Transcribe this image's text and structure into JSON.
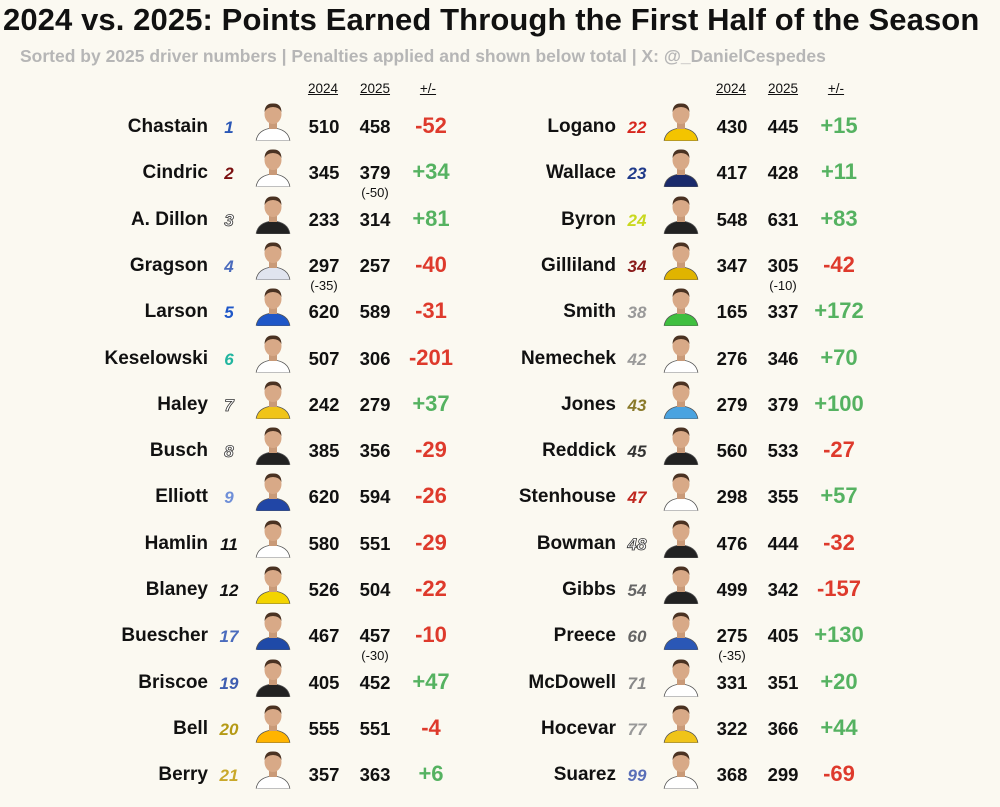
{
  "title": "2024 vs. 2025: Points Earned Through the First Half of the Season",
  "subtitle": "Sorted by 2025 driver numbers | Penalties applied and shown below total | X: @_DanielCespedes",
  "headers": {
    "y2024": "2024",
    "y2025": "2025",
    "diff": "+/-"
  },
  "colors": {
    "positive": "#55b261",
    "negative": "#de3a2c",
    "background": "#fbf9f1",
    "text": "#111111",
    "subtitle": "#b6b6b6"
  },
  "chart_data": {
    "type": "table",
    "columns": [
      "2024",
      "2025",
      "+/-"
    ],
    "rows": [
      {
        "driver": "Chastain",
        "car": "1",
        "car_color": "#2a57b6",
        "suit": "#ffffff",
        "p2024": "510",
        "p2025": "458",
        "diff": "-52",
        "diff_value": -52
      },
      {
        "driver": "Cindric",
        "car": "2",
        "car_color": "#7a1010",
        "suit": "#ffffff",
        "p2024": "345",
        "p2025": "379",
        "pen2025": "(-50)",
        "diff": "+34",
        "diff_value": 34
      },
      {
        "driver": "A. Dillon",
        "car": "3",
        "car_color": "#ffffff",
        "suit": "#222222",
        "p2024": "233",
        "p2025": "314",
        "diff": "+81",
        "diff_value": 81
      },
      {
        "driver": "Gragson",
        "car": "4",
        "car_color": "#4a6bbd",
        "suit": "#e0e4ef",
        "p2024": "297",
        "pen2024": "(-35)",
        "p2025": "257",
        "diff": "-40",
        "diff_value": -40
      },
      {
        "driver": "Larson",
        "car": "5",
        "car_color": "#1f57c8",
        "suit": "#1f57c8",
        "p2024": "620",
        "p2025": "589",
        "diff": "-31",
        "diff_value": -31
      },
      {
        "driver": "Keselowski",
        "car": "6",
        "car_color": "#21b59f",
        "suit": "#ffffff",
        "p2024": "507",
        "p2025": "306",
        "diff": "-201",
        "diff_value": -201
      },
      {
        "driver": "Haley",
        "car": "7",
        "car_color": "#ffffff",
        "suit": "#f0c419",
        "p2024": "242",
        "p2025": "279",
        "diff": "+37",
        "diff_value": 37
      },
      {
        "driver": "Busch",
        "car": "8",
        "car_color": "#ffffff",
        "suit": "#222222",
        "p2024": "385",
        "p2025": "356",
        "diff": "-29",
        "diff_value": -29
      },
      {
        "driver": "Elliott",
        "car": "9",
        "car_color": "#6f8fd8",
        "suit": "#2146a6",
        "p2024": "620",
        "p2025": "594",
        "diff": "-26",
        "diff_value": -26
      },
      {
        "driver": "Hamlin",
        "car": "11",
        "car_color": "#111111",
        "suit": "#ffffff",
        "p2024": "580",
        "p2025": "551",
        "diff": "-29",
        "diff_value": -29
      },
      {
        "driver": "Blaney",
        "car": "12",
        "car_color": "#111111",
        "suit": "#f3d400",
        "p2024": "526",
        "p2025": "504",
        "diff": "-22",
        "diff_value": -22
      },
      {
        "driver": "Buescher",
        "car": "17",
        "car_color": "#4a6bbd",
        "suit": "#1f4aa8",
        "p2024": "467",
        "p2025": "457",
        "pen2025": "(-30)",
        "diff": "-10",
        "diff_value": -10
      },
      {
        "driver": "Briscoe",
        "car": "19",
        "car_color": "#3e5db0",
        "suit": "#222222",
        "p2024": "405",
        "p2025": "452",
        "diff": "+47",
        "diff_value": 47
      },
      {
        "driver": "Bell",
        "car": "20",
        "car_color": "#b59a15",
        "suit": "#ffb400",
        "p2024": "555",
        "p2025": "551",
        "diff": "-4",
        "diff_value": -4
      },
      {
        "driver": "Berry",
        "car": "21",
        "car_color": "#c9a82a",
        "suit": "#ffffff",
        "p2024": "357",
        "p2025": "363",
        "diff": "+6",
        "diff_value": 6
      },
      {
        "driver": "Logano",
        "car": "22",
        "car_color": "#d7261e",
        "suit": "#f3c400",
        "p2024": "430",
        "p2025": "445",
        "diff": "+15",
        "diff_value": 15
      },
      {
        "driver": "Wallace",
        "car": "23",
        "car_color": "#1f3a8a",
        "suit": "#1a2a6b",
        "p2024": "417",
        "p2025": "428",
        "diff": "+11",
        "diff_value": 11
      },
      {
        "driver": "Byron",
        "car": "24",
        "car_color": "#c9d81e",
        "suit": "#222222",
        "p2024": "548",
        "p2025": "631",
        "diff": "+83",
        "diff_value": 83
      },
      {
        "driver": "Gilliland",
        "car": "34",
        "car_color": "#8a1a1a",
        "suit": "#e0b400",
        "p2024": "347",
        "p2025": "305",
        "pen2025": "(-10)",
        "diff": "-42",
        "diff_value": -42
      },
      {
        "driver": "Smith",
        "car": "38",
        "car_color": "#999999",
        "suit": "#3fbf3f",
        "p2024": "165",
        "p2025": "337",
        "diff": "+172",
        "diff_value": 172
      },
      {
        "driver": "Nemechek",
        "car": "42",
        "car_color": "#9a9a9a",
        "suit": "#ffffff",
        "p2024": "276",
        "p2025": "346",
        "diff": "+70",
        "diff_value": 70
      },
      {
        "driver": "Jones",
        "car": "43",
        "car_color": "#8a7a2a",
        "suit": "#4aa3e0",
        "p2024": "279",
        "p2025": "379",
        "diff": "+100",
        "diff_value": 100
      },
      {
        "driver": "Reddick",
        "car": "45",
        "car_color": "#333333",
        "suit": "#222222",
        "p2024": "560",
        "p2025": "533",
        "diff": "-27",
        "diff_value": -27
      },
      {
        "driver": "Stenhouse",
        "car": "47",
        "car_color": "#c0261e",
        "suit": "#ffffff",
        "p2024": "298",
        "p2025": "355",
        "diff": "+57",
        "diff_value": 57
      },
      {
        "driver": "Bowman",
        "car": "48",
        "car_color": "#ffffff",
        "suit": "#222222",
        "p2024": "476",
        "p2025": "444",
        "diff": "-32",
        "diff_value": -32
      },
      {
        "driver": "Gibbs",
        "car": "54",
        "car_color": "#666666",
        "suit": "#222222",
        "p2024": "499",
        "p2025": "342",
        "diff": "-157",
        "diff_value": -157
      },
      {
        "driver": "Preece",
        "car": "60",
        "car_color": "#666666",
        "suit": "#2a57b6",
        "p2024": "275",
        "pen2024": "(-35)",
        "p2025": "405",
        "diff": "+130",
        "diff_value": 130
      },
      {
        "driver": "McDowell",
        "car": "71",
        "car_color": "#888888",
        "suit": "#ffffff",
        "p2024": "331",
        "p2025": "351",
        "diff": "+20",
        "diff_value": 20
      },
      {
        "driver": "Hocevar",
        "car": "77",
        "car_color": "#999999",
        "suit": "#f0c419",
        "p2024": "322",
        "p2025": "366",
        "diff": "+44",
        "diff_value": 44
      },
      {
        "driver": "Suarez",
        "car": "99",
        "car_color": "#5a6fb8",
        "suit": "#ffffff",
        "p2024": "368",
        "p2025": "299",
        "diff": "-69",
        "diff_value": -69
      }
    ]
  }
}
